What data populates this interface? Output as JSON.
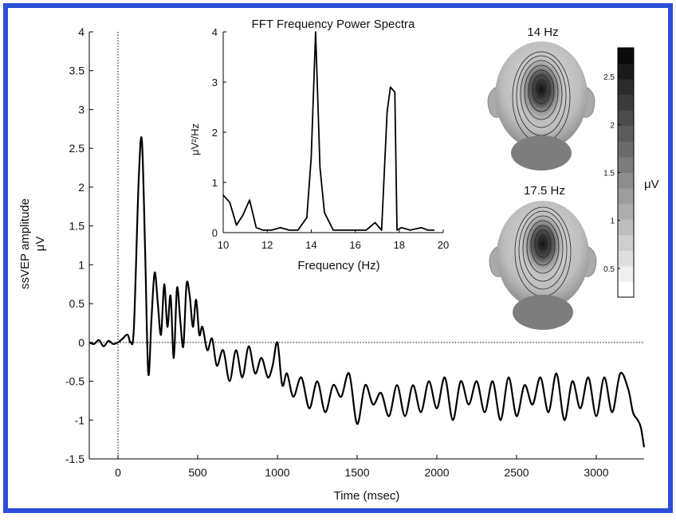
{
  "colors": {
    "frame": "#2a4fd8",
    "trace": "#000000",
    "head": "#b9b9b9"
  },
  "chart_data": [
    {
      "type": "line",
      "xlabel": "Time (msec)",
      "ylabel": "ssVEP amplitude",
      "yunit": "μV",
      "xlim": [
        -180,
        3300
      ],
      "ylim": [
        -1.5,
        4
      ],
      "xticks": [
        0,
        500,
        1000,
        1500,
        2000,
        2500,
        3000
      ],
      "xtick_labels": [
        "0",
        "500",
        "1000",
        "1500",
        "2000",
        "2500",
        "3000"
      ],
      "yticks": [
        -1.5,
        -1,
        -0.5,
        0,
        0.5,
        1,
        1.5,
        2,
        2.5,
        3,
        3.5,
        4
      ],
      "ytick_labels": [
        "-1.5",
        "-1",
        "-0.5",
        "0",
        "0.5",
        "1",
        "1.5",
        "2",
        "2.5",
        "3",
        "3.5",
        "4"
      ],
      "stimulus_onset_ms": 0,
      "zero_reference_line": true,
      "series": [
        {
          "x": [
            -180,
            -150,
            -120,
            -90,
            -60,
            -30,
            0,
            30,
            60,
            80,
            100,
            130,
            150,
            170,
            190,
            210,
            230,
            250,
            270,
            290,
            310,
            330,
            350,
            370,
            390,
            410,
            430,
            450,
            470,
            490,
            510,
            530,
            560,
            590,
            620,
            660,
            700,
            740,
            780,
            820,
            860,
            900,
            940,
            970,
            1000,
            1030,
            1060,
            1100,
            1150,
            1200,
            1250,
            1300,
            1350,
            1400,
            1450,
            1500,
            1550,
            1600,
            1650,
            1700,
            1750,
            1800,
            1850,
            1900,
            1950,
            2000,
            2050,
            2100,
            2150,
            2200,
            2250,
            2300,
            2350,
            2400,
            2450,
            2500,
            2550,
            2600,
            2650,
            2700,
            2750,
            2800,
            2850,
            2900,
            2950,
            3000,
            3050,
            3100,
            3150,
            3200,
            3230,
            3260,
            3280,
            3300
          ],
          "y": [
            0.0,
            -0.02,
            0.03,
            -0.05,
            0.02,
            -0.02,
            0.0,
            0.05,
            0.1,
            0.0,
            0.2,
            2.1,
            2.6,
            1.2,
            -0.4,
            0.3,
            0.9,
            0.5,
            0.1,
            0.75,
            0.2,
            0.6,
            -0.2,
            0.7,
            0.3,
            -0.05,
            0.75,
            0.6,
            0.2,
            0.55,
            0.1,
            0.2,
            -0.1,
            0.05,
            -0.3,
            -0.1,
            -0.5,
            -0.1,
            -0.45,
            -0.05,
            -0.4,
            -0.2,
            -0.45,
            -0.3,
            0.0,
            -0.55,
            -0.4,
            -0.7,
            -0.45,
            -0.85,
            -0.5,
            -0.9,
            -0.55,
            -0.7,
            -0.4,
            -1.05,
            -0.55,
            -0.8,
            -0.65,
            -0.95,
            -0.55,
            -0.95,
            -0.55,
            -0.9,
            -0.5,
            -0.85,
            -0.45,
            -1.0,
            -0.5,
            -0.8,
            -0.5,
            -0.9,
            -0.5,
            -1.0,
            -0.45,
            -0.95,
            -0.55,
            -0.8,
            -0.45,
            -0.9,
            -0.4,
            -1.0,
            -0.5,
            -0.85,
            -0.45,
            -0.95,
            -0.45,
            -0.9,
            -0.4,
            -0.6,
            -0.9,
            -1.0,
            -1.1,
            -1.35
          ]
        }
      ]
    },
    {
      "type": "line",
      "title": "FFT Frequency Power Spectra",
      "xlabel": "Frequency (Hz)",
      "ylabel": "μV²/Hz",
      "xlim": [
        10,
        20
      ],
      "ylim": [
        0,
        4
      ],
      "xticks": [
        10,
        12,
        14,
        16,
        18,
        20
      ],
      "xtick_labels": [
        "10",
        "12",
        "14",
        "16",
        "18",
        "20"
      ],
      "yticks": [
        0,
        1,
        2,
        3,
        4
      ],
      "ytick_labels": [
        "0",
        "1",
        "2",
        "3",
        "4"
      ],
      "series": [
        {
          "x": [
            10,
            10.3,
            10.6,
            10.9,
            11.2,
            11.5,
            11.8,
            12.2,
            12.6,
            13.0,
            13.4,
            13.8,
            14.0,
            14.2,
            14.4,
            14.6,
            15.0,
            15.5,
            16.0,
            16.5,
            16.9,
            17.2,
            17.45,
            17.6,
            17.8,
            17.9,
            18.1,
            18.5,
            19.0,
            19.3,
            19.6
          ],
          "y": [
            0.75,
            0.6,
            0.15,
            0.35,
            0.65,
            0.1,
            0.05,
            0.05,
            0.1,
            0.05,
            0.05,
            0.3,
            1.5,
            4.0,
            1.3,
            0.4,
            0.05,
            0.05,
            0.05,
            0.05,
            0.2,
            0.05,
            2.4,
            2.9,
            2.8,
            0.05,
            0.1,
            0.05,
            0.1,
            0.05,
            0.05
          ]
        }
      ]
    }
  ],
  "topomaps": [
    {
      "label": "14 Hz"
    },
    {
      "label": "17.5 Hz"
    }
  ],
  "colorbar": {
    "unit": "μV",
    "ticks": [
      "0.5",
      "1",
      "1.5",
      "2",
      "2.5"
    ],
    "range": [
      0.2,
      2.8
    ]
  }
}
